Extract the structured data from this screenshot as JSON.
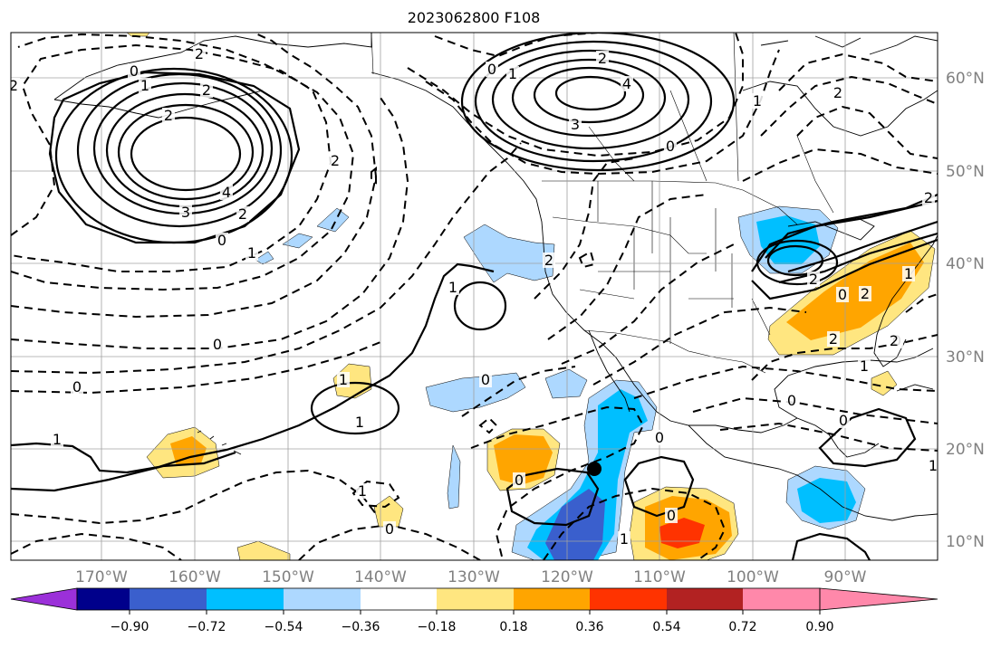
{
  "title": "2023062800 F108",
  "map": {
    "lon_labels": [
      "170°W",
      "160°W",
      "150°W",
      "140°W",
      "130°W",
      "120°W",
      "110°W",
      "100°W",
      "90°W"
    ],
    "lat_labels": [
      "60°N",
      "50°N",
      "40°N",
      "30°N",
      "20°N",
      "10°N"
    ]
  },
  "colorbar": {
    "ticks": [
      "−0.90",
      "−0.72",
      "−0.54",
      "−0.36",
      "−0.18",
      "0.18",
      "0.36",
      "0.54",
      "0.72",
      "0.90"
    ],
    "colors": [
      "#9b30d9",
      "#00008b",
      "#3a5fcd",
      "#00bfff",
      "#add8ff",
      "#ffffff",
      "#ffe680",
      "#ffa500",
      "#ff3300",
      "#b22222",
      "#ff88aa"
    ]
  },
  "contour_labels": [
    {
      "text": "2"
    },
    {
      "text": "0"
    },
    {
      "text": "2"
    },
    {
      "text": "1"
    },
    {
      "text": "2"
    },
    {
      "text": "2"
    },
    {
      "text": "4"
    },
    {
      "text": "3"
    },
    {
      "text": "2"
    },
    {
      "text": "0"
    },
    {
      "text": "1"
    },
    {
      "text": "2"
    },
    {
      "text": "0"
    },
    {
      "text": "1"
    },
    {
      "text": "2"
    },
    {
      "text": "4"
    },
    {
      "text": "3"
    },
    {
      "text": "0"
    },
    {
      "text": "1"
    },
    {
      "text": "2"
    },
    {
      "text": "2"
    },
    {
      "text": "1"
    },
    {
      "text": "2"
    },
    {
      "text": "0"
    },
    {
      "text": "1"
    },
    {
      "text": "0"
    },
    {
      "text": "1"
    },
    {
      "text": "1"
    },
    {
      "text": "0"
    },
    {
      "text": "1"
    },
    {
      "text": "0"
    },
    {
      "text": "0"
    },
    {
      "text": "1"
    },
    {
      "text": "0"
    },
    {
      "text": "0"
    },
    {
      "text": "1"
    },
    {
      "text": "1"
    },
    {
      "text": "2"
    },
    {
      "text": "2"
    },
    {
      "text": "0"
    },
    {
      "text": "2"
    },
    {
      "text": "1"
    },
    {
      "text": "0"
    },
    {
      "text": "0"
    },
    {
      "text": "2"
    },
    {
      "text": "0"
    }
  ]
}
